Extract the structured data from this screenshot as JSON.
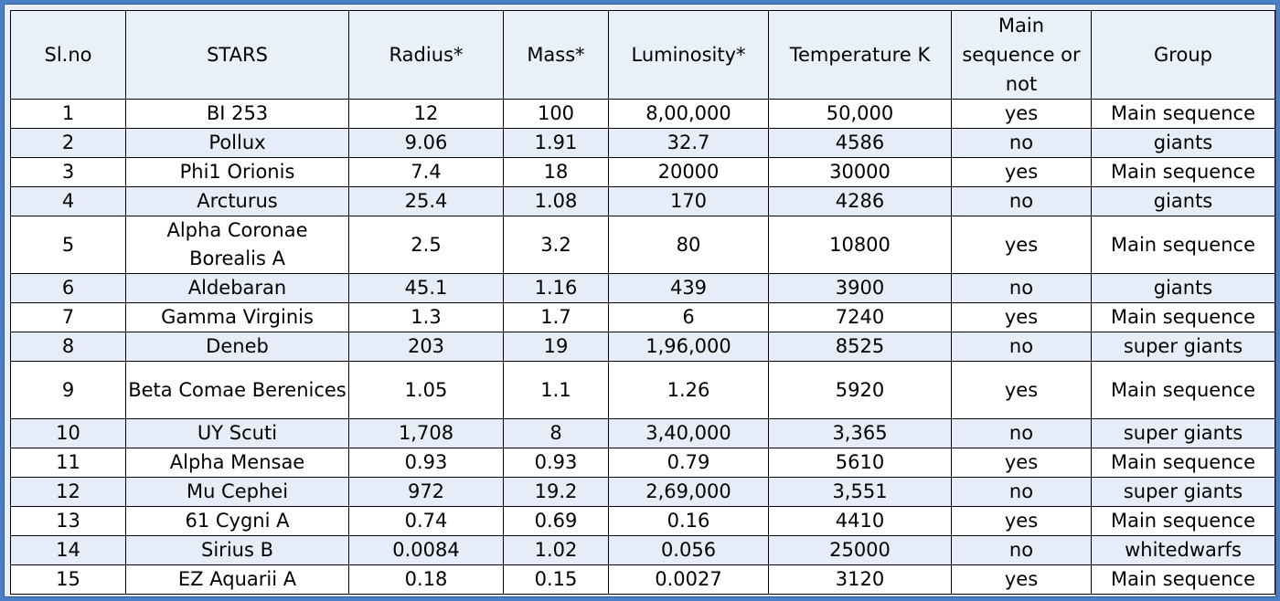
{
  "table": {
    "headers": [
      "Sl.no",
      "STARS",
      "Radius*",
      "Mass*",
      "Luminosity*",
      "Temperature K",
      "Main sequence or not",
      "Group"
    ],
    "rows": [
      [
        "1",
        "BI 253",
        "12",
        "100",
        "8,00,000",
        "50,000",
        "yes",
        "Main sequence"
      ],
      [
        "2",
        "Pollux",
        "9.06",
        "1.91",
        "32.7",
        "4586",
        "no",
        "giants"
      ],
      [
        "3",
        "Phi1 Orionis",
        "7.4",
        "18",
        "20000",
        "30000",
        "yes",
        "Main sequence"
      ],
      [
        "4",
        "Arcturus",
        "25.4",
        "1.08",
        "170",
        "4286",
        "no",
        "giants"
      ],
      [
        "5",
        "Alpha Coronae Borealis A",
        "2.5",
        "3.2",
        "80",
        "10800",
        "yes",
        "Main sequence"
      ],
      [
        "6",
        "Aldebaran",
        "45.1",
        "1.16",
        "439",
        "3900",
        "no",
        "giants"
      ],
      [
        "7",
        "Gamma Virginis",
        "1.3",
        "1.7",
        "6",
        "7240",
        "yes",
        "Main sequence"
      ],
      [
        "8",
        "Deneb",
        "203",
        "19",
        "1,96,000",
        "8525",
        "no",
        "super giants"
      ],
      [
        "9",
        "Beta Comae Berenices",
        "1.05",
        "1.1",
        "1.26",
        "5920",
        "yes",
        "Main sequence"
      ],
      [
        "10",
        "UY Scuti",
        "1,708",
        "8",
        "3,40,000",
        "3,365",
        "no",
        "super giants"
      ],
      [
        "11",
        "Alpha Mensae",
        "0.93",
        "0.93",
        "0.79",
        "5610",
        "yes",
        "Main sequence"
      ],
      [
        "12",
        "Mu Cephei",
        "972",
        "19.2",
        "2,69,000",
        "3,551",
        "no",
        "super giants"
      ],
      [
        "13",
        "61 Cygni A",
        "0.74",
        "0.69",
        "0.16",
        "4410",
        "yes",
        "Main sequence"
      ],
      [
        "14",
        "Sirius B",
        "0.0084",
        "1.02",
        "0.056",
        "25000",
        "no",
        "whitedwarfs"
      ],
      [
        "15",
        "EZ Aquarii A",
        "0.18",
        "0.15",
        "0.0027",
        "3120",
        "yes",
        "Main sequence"
      ]
    ]
  }
}
